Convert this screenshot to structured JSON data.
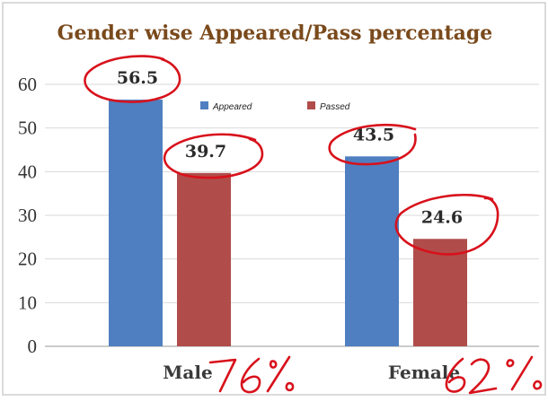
{
  "colors": {
    "appeared": "#4f7fc0",
    "passed": "#b04d4a",
    "title": "#7a4a1c",
    "annotation": "#d8111b"
  },
  "chart_data": {
    "type": "bar",
    "title": "Gender wise Appeared/Pass percentage",
    "categories": [
      "Male",
      "Female"
    ],
    "series": [
      {
        "name": "Appeared",
        "values": [
          56.5,
          43.5
        ]
      },
      {
        "name": "Passed",
        "values": [
          39.7,
          24.6
        ]
      }
    ],
    "data_labels": [
      [
        "56.5",
        "43.5"
      ],
      [
        "39.7",
        "24.6"
      ]
    ],
    "ylim": [
      0,
      60
    ],
    "yticks": [
      "0",
      "10",
      "20",
      "30",
      "40",
      "50",
      "60"
    ],
    "grid": true,
    "legend_position": "top-center",
    "handwritten_annotations": [
      "76%",
      "62%"
    ]
  }
}
